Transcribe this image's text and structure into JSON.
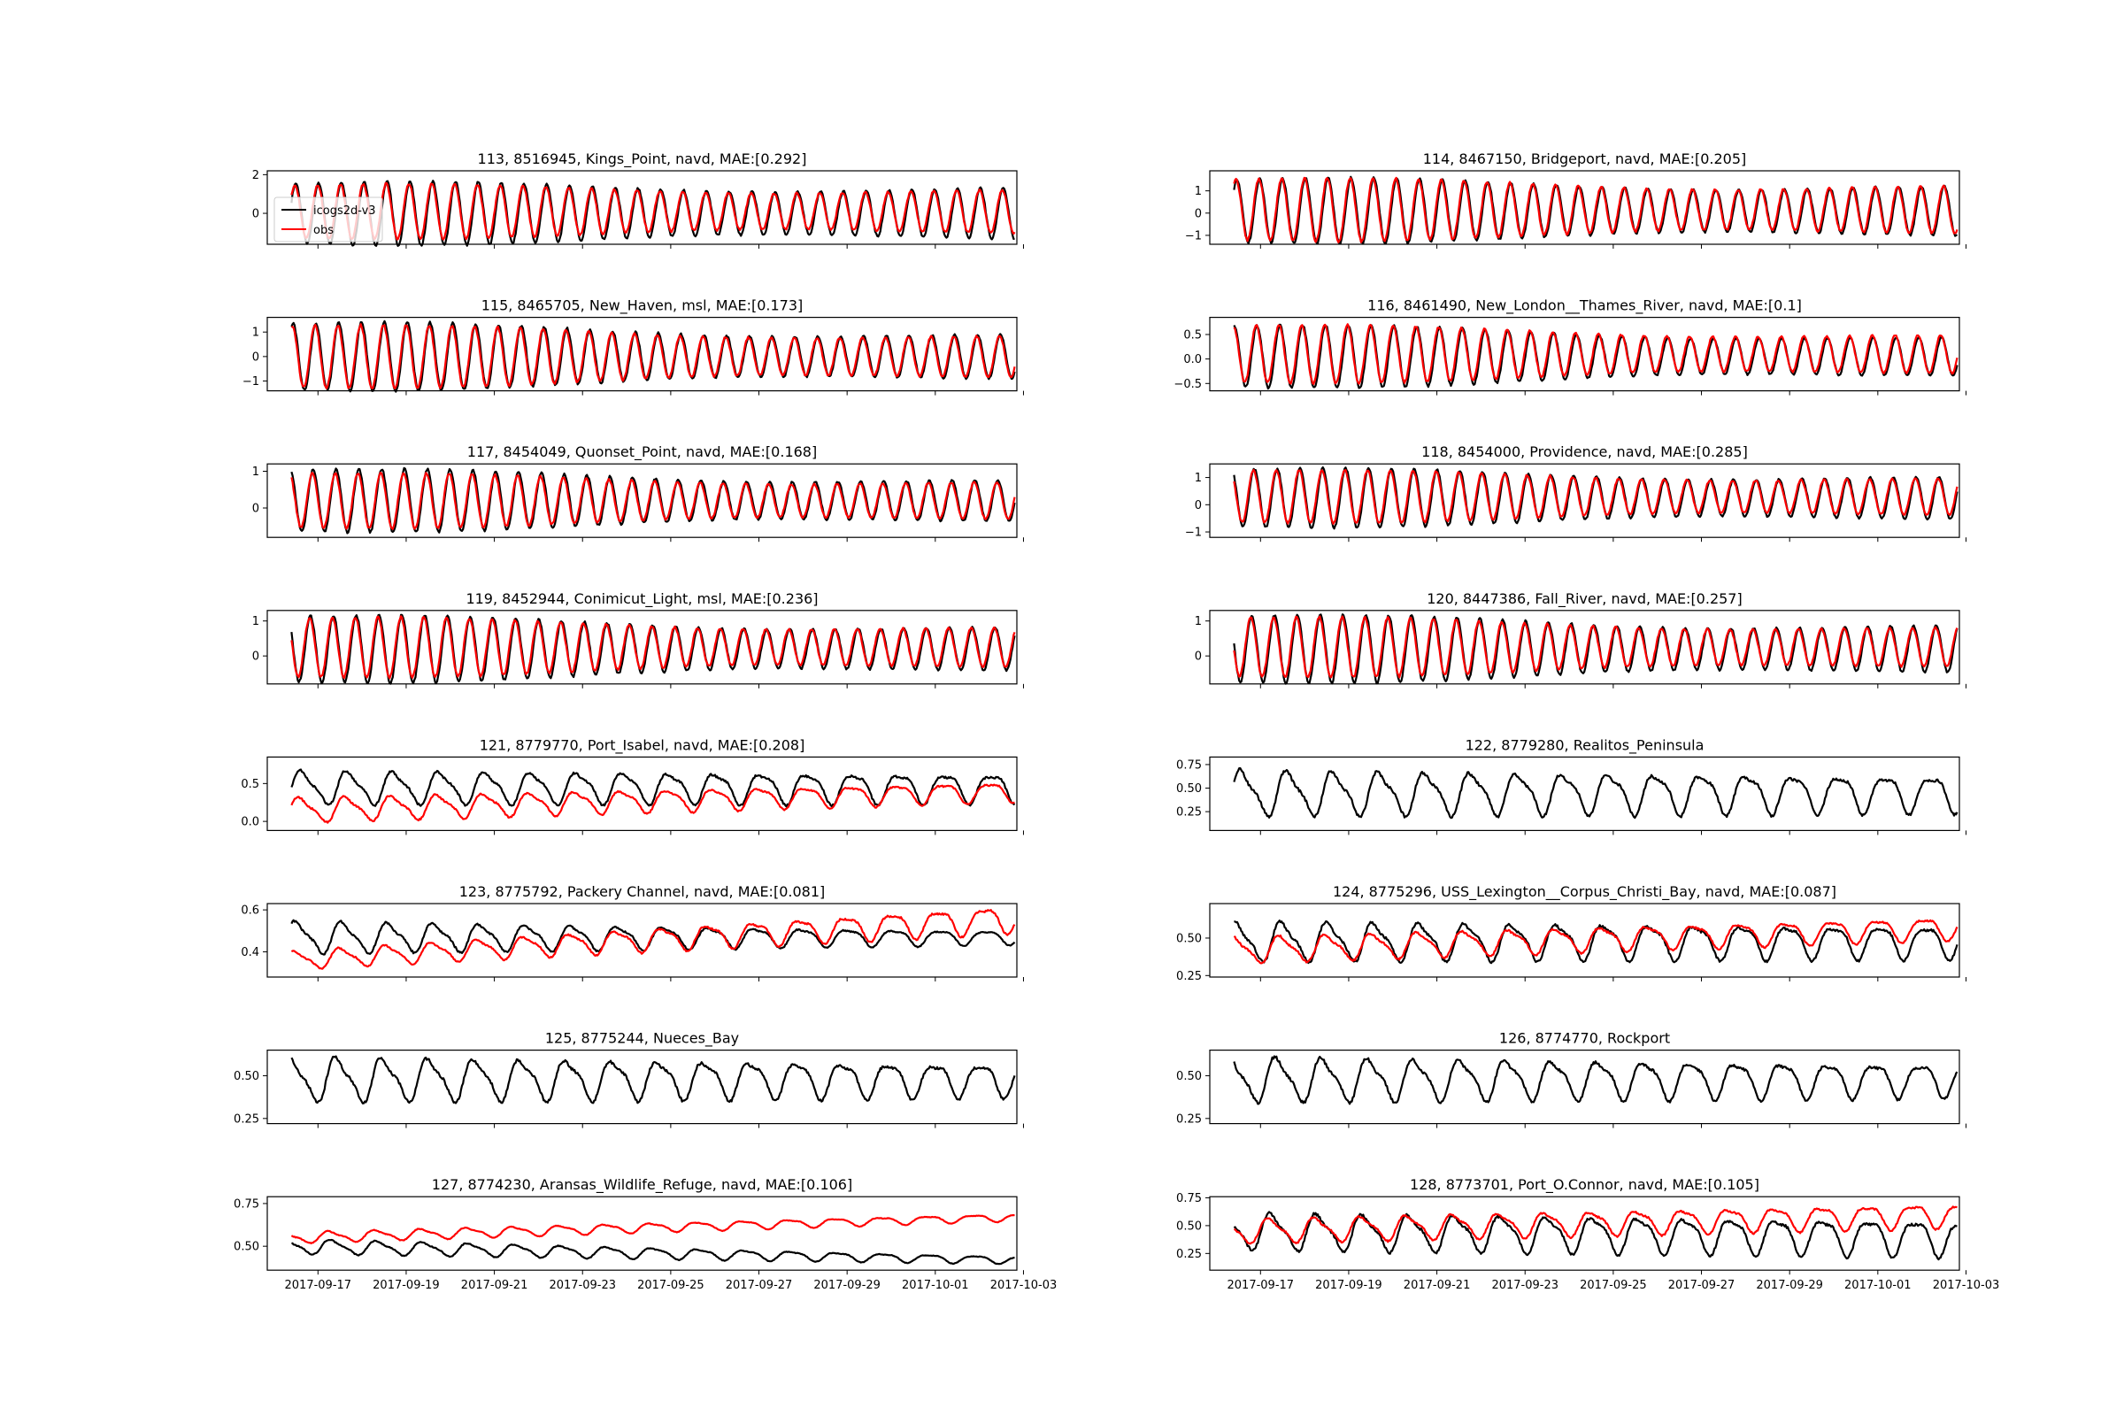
{
  "figure": {
    "legend": {
      "entries": [
        "icogs2d-v3",
        "obs"
      ],
      "placement": "upper-left of first panel"
    },
    "colors": {
      "model": "#000000",
      "obs": "#ff0000",
      "axes": "#000000",
      "background": "#ffffff"
    },
    "x_ticks": [
      "2017-09-17",
      "2017-09-19",
      "2017-09-21",
      "2017-09-23",
      "2017-09-25",
      "2017-09-27",
      "2017-09-29",
      "2017-10-01",
      "2017-10-03"
    ]
  },
  "chart_data": [
    {
      "type": "line",
      "title": "113, 8516945, Kings_Point, navd, MAE:[0.292]",
      "ylim": [
        -1.6,
        2.2
      ],
      "yticks": [
        "2",
        "0"
      ],
      "ytick_values": [
        2,
        0
      ],
      "model": {
        "name": "icogs2d-v3",
        "mean": 0.0,
        "amp_start": 1.5,
        "amp_end": 1.2,
        "period_h": 12.42
      },
      "obs": {
        "name": "obs",
        "mean": 0.1,
        "amp_start": 1.3,
        "amp_end": 1.0,
        "period_h": 12.42
      }
    },
    {
      "type": "line",
      "title": "114, 8467150, Bridgeport, navd, MAE:[0.205]",
      "ylim": [
        -1.4,
        1.9
      ],
      "yticks": [
        "1",
        "0",
        "−1"
      ],
      "ytick_values": [
        1,
        0,
        -1
      ],
      "model": {
        "name": "icogs2d-v3",
        "mean": 0.1,
        "amp_start": 1.35,
        "amp_end": 1.0,
        "period_h": 12.42
      },
      "obs": {
        "name": "obs",
        "mean": 0.15,
        "amp_start": 1.3,
        "amp_end": 0.95,
        "period_h": 12.42
      }
    },
    {
      "type": "line",
      "title": "115, 8465705, New_Haven, msl, MAE:[0.173]",
      "ylim": [
        -1.4,
        1.6
      ],
      "yticks": [
        "1",
        "0",
        "−1"
      ],
      "ytick_values": [
        1,
        0,
        -1
      ],
      "model": {
        "name": "icogs2d-v3",
        "mean": 0.0,
        "amp_start": 1.3,
        "amp_end": 0.8,
        "period_h": 12.42
      },
      "obs": {
        "name": "obs",
        "mean": 0.0,
        "amp_start": 1.2,
        "amp_end": 0.75,
        "period_h": 12.42
      }
    },
    {
      "type": "line",
      "title": "116, 8461490, New_London__Thames_River, navd, MAE:[0.1]",
      "ylim": [
        -0.65,
        0.85
      ],
      "yticks": [
        "0.5",
        "0.0",
        "−0.5"
      ],
      "ytick_values": [
        0.5,
        0.0,
        -0.5
      ],
      "model": {
        "name": "icogs2d-v3",
        "mean": 0.05,
        "amp_start": 0.6,
        "amp_end": 0.35,
        "period_h": 12.42
      },
      "obs": {
        "name": "obs",
        "mean": 0.1,
        "amp_start": 0.55,
        "amp_end": 0.35,
        "period_h": 12.42
      }
    },
    {
      "type": "line",
      "title": "117, 8454049, Quonset_Point, navd, MAE:[0.168]",
      "ylim": [
        -0.8,
        1.2
      ],
      "yticks": [
        "1",
        "0"
      ],
      "ytick_values": [
        1,
        0
      ],
      "model": {
        "name": "icogs2d-v3",
        "mean": 0.2,
        "amp_start": 0.8,
        "amp_end": 0.5,
        "period_h": 12.42
      },
      "obs": {
        "name": "obs",
        "mean": 0.2,
        "amp_start": 0.7,
        "amp_end": 0.45,
        "period_h": 12.42
      }
    },
    {
      "type": "line",
      "title": "118, 8454000, Providence, navd, MAE:[0.285]",
      "ylim": [
        -1.2,
        1.5
      ],
      "yticks": [
        "1",
        "0",
        "−1"
      ],
      "ytick_values": [
        1,
        0,
        -1
      ],
      "model": {
        "name": "icogs2d-v3",
        "mean": 0.25,
        "amp_start": 1.0,
        "amp_end": 0.7,
        "period_h": 12.42
      },
      "obs": {
        "name": "obs",
        "mean": 0.3,
        "amp_start": 0.9,
        "amp_end": 0.6,
        "period_h": 12.42
      }
    },
    {
      "type": "line",
      "title": "119, 8452944, Conimicut_Light, msl, MAE:[0.236]",
      "ylim": [
        -0.8,
        1.3
      ],
      "yticks": [
        "1",
        "0"
      ],
      "ytick_values": [
        1,
        0
      ],
      "model": {
        "name": "icogs2d-v3",
        "mean": 0.2,
        "amp_start": 0.9,
        "amp_end": 0.55,
        "period_h": 12.42
      },
      "obs": {
        "name": "obs",
        "mean": 0.25,
        "amp_start": 0.8,
        "amp_end": 0.5,
        "period_h": 12.42
      }
    },
    {
      "type": "line",
      "title": "120, 8447386, Fall_River, navd, MAE:[0.257]",
      "ylim": [
        -0.8,
        1.3
      ],
      "yticks": [
        "1",
        "0"
      ],
      "ytick_values": [
        1,
        0
      ],
      "model": {
        "name": "icogs2d-v3",
        "mean": 0.2,
        "amp_start": 0.9,
        "amp_end": 0.6,
        "period_h": 12.42
      },
      "obs": {
        "name": "obs",
        "mean": 0.25,
        "amp_start": 0.8,
        "amp_end": 0.5,
        "period_h": 12.42
      }
    },
    {
      "type": "line",
      "title": "121, 8779770, Port_Isabel, navd, MAE:[0.208]",
      "ylim": [
        -0.12,
        0.85
      ],
      "yticks": [
        "0.5",
        "0.0"
      ],
      "ytick_values": [
        0.5,
        0.0
      ],
      "model": {
        "name": "icogs2d-v3",
        "mean": 0.45,
        "amp_start": 0.2,
        "amp_end": 0.18,
        "period_h": 25.0
      },
      "obs": {
        "name": "obs",
        "mean": 0.15,
        "amp_start": 0.15,
        "amp_end": 0.12,
        "period_h": 25.0,
        "trend_end": 0.25
      }
    },
    {
      "type": "line",
      "title": "122, 8779280, Realitos_Peninsula",
      "ylim": [
        0.05,
        0.83
      ],
      "yticks": [
        "0.75",
        "0.50",
        "0.25"
      ],
      "ytick_values": [
        0.75,
        0.5,
        0.25
      ],
      "model": {
        "name": "icogs2d-v3",
        "mean": 0.45,
        "amp_start": 0.22,
        "amp_end": 0.18,
        "period_h": 25.0
      }
    },
    {
      "type": "line",
      "title": "123, 8775792, Packery Channel, navd, MAE:[0.081]",
      "ylim": [
        0.28,
        0.63
      ],
      "yticks": [
        "0.6",
        "0.4"
      ],
      "ytick_values": [
        0.6,
        0.4
      ],
      "model": {
        "name": "icogs2d-v3",
        "mean": 0.47,
        "amp_start": 0.07,
        "amp_end": 0.03,
        "period_h": 25.0
      },
      "obs": {
        "name": "obs",
        "mean": 0.36,
        "amp_start": 0.04,
        "amp_end": 0.06,
        "period_h": 25.0,
        "trend_end": 0.2
      }
    },
    {
      "type": "line",
      "title": "124, 8775296, USS_Lexington__Corpus_Christi_Bay, navd, MAE:[0.087]",
      "ylim": [
        0.24,
        0.73
      ],
      "yticks": [
        "0.50",
        "0.25"
      ],
      "ytick_values": [
        0.5,
        0.25
      ],
      "model": {
        "name": "icogs2d-v3",
        "mean": 0.48,
        "amp_start": 0.12,
        "amp_end": 0.1,
        "period_h": 25.0
      },
      "obs": {
        "name": "obs",
        "mean": 0.42,
        "amp_start": 0.08,
        "amp_end": 0.07,
        "period_h": 25.0,
        "trend_end": 0.15
      }
    },
    {
      "type": "line",
      "title": "125, 8775244, Nueces_Bay",
      "ylim": [
        0.22,
        0.65
      ],
      "yticks": [
        "0.50",
        "0.25"
      ],
      "ytick_values": [
        0.5,
        0.25
      ],
      "model": {
        "name": "icogs2d-v3",
        "mean": 0.48,
        "amp_start": 0.12,
        "amp_end": 0.09,
        "period_h": 25.0
      }
    },
    {
      "type": "line",
      "title": "126, 8774770, Rockport",
      "ylim": [
        0.22,
        0.65
      ],
      "yticks": [
        "0.50",
        "0.25"
      ],
      "ytick_values": [
        0.5,
        0.25
      ],
      "model": {
        "name": "icogs2d-v3",
        "mean": 0.48,
        "amp_start": 0.12,
        "amp_end": 0.09,
        "period_h": 25.0
      }
    },
    {
      "type": "line",
      "title": "127, 8774230, Aransas_Wildlife_Refuge, navd, MAE:[0.106]",
      "ylim": [
        0.36,
        0.79
      ],
      "yticks": [
        "0.75",
        "0.50"
      ],
      "ytick_values": [
        0.75,
        0.5
      ],
      "model": {
        "name": "icogs2d-v3",
        "mean": 0.5,
        "amp_start": 0.04,
        "amp_end": 0.02,
        "period_h": 25.0,
        "trend_end": -0.08
      },
      "obs": {
        "name": "obs",
        "mean": 0.55,
        "amp_start": 0.03,
        "amp_end": 0.02,
        "period_h": 25.0,
        "trend_end": 0.12
      }
    },
    {
      "type": "line",
      "title": "128, 8773701, Port_O.Connor, navd, MAE:[0.105]",
      "ylim": [
        0.1,
        0.76
      ],
      "yticks": [
        "0.75",
        "0.50",
        "0.25"
      ],
      "ytick_values": [
        0.75,
        0.5,
        0.25
      ],
      "model": {
        "name": "icogs2d-v3",
        "mean": 0.45,
        "amp_start": 0.15,
        "amp_end": 0.15,
        "period_h": 25.0,
        "trend_end": -0.05
      },
      "obs": {
        "name": "obs",
        "mean": 0.45,
        "amp_start": 0.1,
        "amp_end": 0.1,
        "period_h": 25.0,
        "trend_end": 0.15
      }
    }
  ]
}
